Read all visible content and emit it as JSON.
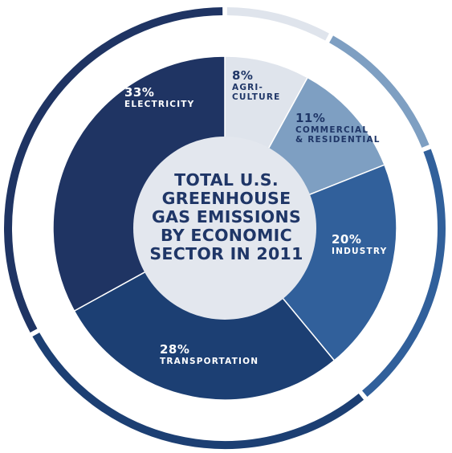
{
  "chart_data": {
    "type": "pie",
    "title_lines": [
      "TOTAL U.S.",
      "GREENHOUSE",
      "GAS EMISSIONS",
      "BY ECONOMIC",
      "SECTOR IN 2011"
    ],
    "slices": [
      {
        "pct_label": "8%",
        "name_lines": [
          "AGRI-",
          "CULTURE"
        ],
        "value": 8,
        "color": "#dfe4ec"
      },
      {
        "pct_label": "11%",
        "name_lines": [
          "COMMERCIAL",
          "& RESIDENTIAL"
        ],
        "value": 11,
        "color": "#7e9fc2"
      },
      {
        "pct_label": "20%",
        "name_lines": [
          "INDUSTRY"
        ],
        "value": 20,
        "color": "#31609b"
      },
      {
        "pct_label": "28%",
        "name_lines": [
          "TRANSPORTATION"
        ],
        "value": 28,
        "color": "#1c3f73"
      },
      {
        "pct_label": "33%",
        "name_lines": [
          "ELECTRICITY"
        ],
        "value": 33,
        "color": "#1f3463"
      }
    ],
    "center_color": "#e3e7ee"
  }
}
